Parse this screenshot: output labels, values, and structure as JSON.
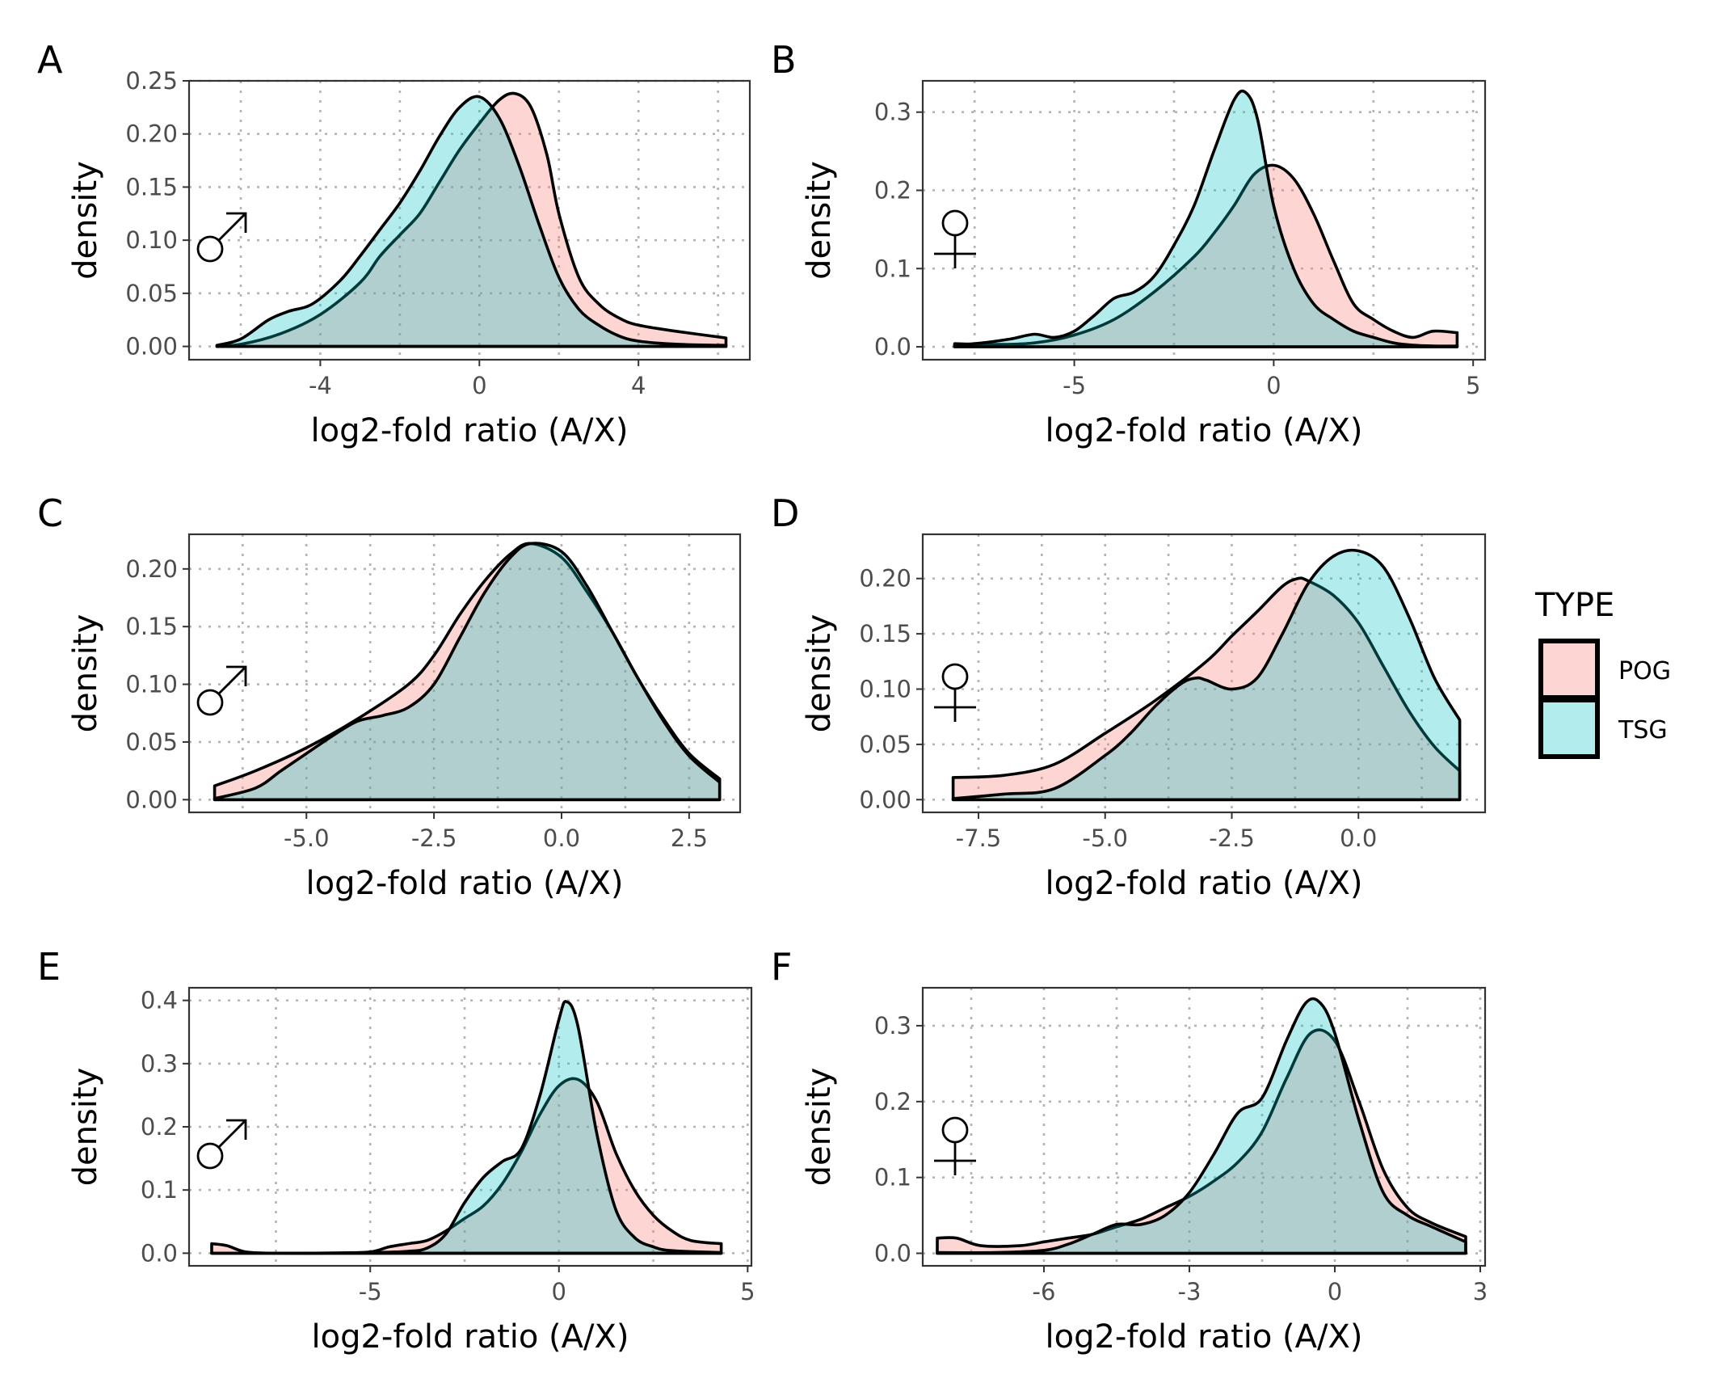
{
  "colors": {
    "POG": "#F8766D",
    "TSG": "#00BFC4"
  },
  "legend": {
    "title": "TYPE",
    "items": [
      {
        "key": "POG",
        "label": "POG"
      },
      {
        "key": "TSG",
        "label": "TSG"
      }
    ]
  },
  "chart_data": [
    {
      "type": "area",
      "panel": "A",
      "sex_symbol": "male-symbol-icon",
      "xlabel": "log2-fold ratio (A/X)",
      "ylabel": "density",
      "xlim": [
        -7.3,
        6.8
      ],
      "ylim": [
        -0.0125,
        0.25
      ],
      "xticks": [
        -4,
        0,
        4
      ],
      "xtick_labels": [
        "-4",
        "0",
        "4"
      ],
      "yticks": [
        0,
        0.05,
        0.1,
        0.15,
        0.2,
        0.25
      ],
      "ytick_labels": [
        "0.00",
        "0.05",
        "0.10",
        "0.15",
        "0.20",
        "0.25"
      ],
      "series": [
        {
          "name": "POG",
          "x": [
            -6.6,
            -6,
            -5,
            -4,
            -3,
            -2.5,
            -2,
            -1.5,
            -1,
            -0.5,
            0,
            0.5,
            0.9,
            1.3,
            1.7,
            2,
            2.5,
            3,
            3.5,
            4,
            5,
            6.2
          ],
          "y": [
            0.001,
            0.002,
            0.012,
            0.03,
            0.06,
            0.085,
            0.105,
            0.125,
            0.155,
            0.185,
            0.21,
            0.232,
            0.238,
            0.225,
            0.18,
            0.125,
            0.065,
            0.04,
            0.027,
            0.02,
            0.014,
            0.008
          ]
        },
        {
          "name": "TSG",
          "x": [
            -6.6,
            -6,
            -5.3,
            -4.8,
            -4.2,
            -3.5,
            -3,
            -2.5,
            -2,
            -1.5,
            -1,
            -0.5,
            0,
            0.5,
            1,
            1.5,
            2,
            2.5,
            3,
            3.5,
            4,
            5,
            6.2
          ],
          "y": [
            0.001,
            0.007,
            0.025,
            0.033,
            0.04,
            0.062,
            0.085,
            0.11,
            0.135,
            0.165,
            0.198,
            0.225,
            0.235,
            0.215,
            0.17,
            0.115,
            0.065,
            0.035,
            0.02,
            0.01,
            0.005,
            0.002,
            0.001
          ]
        }
      ]
    },
    {
      "type": "area",
      "panel": "B",
      "sex_symbol": "female-symbol-icon",
      "xlabel": "log2-fold ratio (A/X)",
      "ylabel": "density",
      "xlim": [
        -8.8,
        5.3
      ],
      "ylim": [
        -0.0165,
        0.34
      ],
      "xticks": [
        -5,
        0,
        5
      ],
      "xtick_labels": [
        "-5",
        "0",
        "5"
      ],
      "yticks": [
        0,
        0.1,
        0.2,
        0.3
      ],
      "ytick_labels": [
        "0.0",
        "0.1",
        "0.2",
        "0.3"
      ],
      "series": [
        {
          "name": "POG",
          "x": [
            -8,
            -7,
            -6,
            -5,
            -4,
            -3,
            -2,
            -1.5,
            -1,
            -0.5,
            0,
            0.5,
            1,
            1.5,
            2,
            2.5,
            3,
            3.5,
            4,
            4.6
          ],
          "y": [
            0.004,
            0.003,
            0.005,
            0.015,
            0.035,
            0.07,
            0.115,
            0.145,
            0.18,
            0.22,
            0.232,
            0.215,
            0.17,
            0.11,
            0.055,
            0.035,
            0.02,
            0.012,
            0.02,
            0.018
          ]
        },
        {
          "name": "TSG",
          "x": [
            -8,
            -7.3,
            -6.6,
            -6,
            -5.5,
            -5,
            -4.5,
            -4,
            -3.5,
            -3,
            -2.5,
            -2,
            -1.5,
            -1,
            -0.7,
            -0.4,
            0,
            0.5,
            1,
            1.5,
            2,
            2.5,
            3,
            3.5,
            4,
            4.6
          ],
          "y": [
            0.002,
            0.005,
            0.01,
            0.016,
            0.012,
            0.02,
            0.04,
            0.062,
            0.07,
            0.09,
            0.13,
            0.18,
            0.25,
            0.315,
            0.325,
            0.29,
            0.18,
            0.1,
            0.055,
            0.035,
            0.02,
            0.012,
            0.005,
            0.002,
            0.001,
            0.001
          ]
        }
      ]
    },
    {
      "type": "area",
      "panel": "C",
      "sex_symbol": "male-symbol-icon",
      "xlabel": "log2-fold ratio (A/X)",
      "ylabel": "density",
      "xlim": [
        -7.3,
        3.5
      ],
      "ylim": [
        -0.011,
        0.23
      ],
      "xticks": [
        -5,
        -2.5,
        0,
        2.5
      ],
      "xtick_labels": [
        "-5.0",
        "-2.5",
        "0.0",
        "2.5"
      ],
      "yticks": [
        0,
        0.05,
        0.1,
        0.15,
        0.2
      ],
      "ytick_labels": [
        "0.00",
        "0.05",
        "0.10",
        "0.15",
        "0.20"
      ],
      "series": [
        {
          "name": "POG",
          "x": [
            -6.8,
            -6,
            -5,
            -4,
            -3,
            -2.5,
            -2,
            -1.5,
            -1,
            -0.6,
            0,
            0.5,
            1,
            1.5,
            2,
            2.5,
            3.1
          ],
          "y": [
            0.012,
            0.025,
            0.045,
            0.07,
            0.1,
            0.125,
            0.16,
            0.19,
            0.213,
            0.222,
            0.21,
            0.18,
            0.145,
            0.105,
            0.07,
            0.04,
            0.018
          ]
        },
        {
          "name": "TSG",
          "x": [
            -6.8,
            -6,
            -5.5,
            -5,
            -4.5,
            -4,
            -3.5,
            -3,
            -2.5,
            -2,
            -1.5,
            -1,
            -0.6,
            0,
            0.5,
            1,
            1.5,
            2,
            2.5,
            3.1
          ],
          "y": [
            0.001,
            0.01,
            0.025,
            0.04,
            0.055,
            0.068,
            0.073,
            0.08,
            0.1,
            0.14,
            0.18,
            0.21,
            0.222,
            0.215,
            0.185,
            0.145,
            0.105,
            0.068,
            0.038,
            0.015
          ]
        }
      ]
    },
    {
      "type": "area",
      "panel": "D",
      "sex_symbol": "female-symbol-icon",
      "xlabel": "log2-fold ratio (A/X)",
      "ylabel": "density",
      "xlim": [
        -8.6,
        2.5
      ],
      "ylim": [
        -0.0115,
        0.24
      ],
      "xticks": [
        -7.5,
        -5,
        -2.5,
        0
      ],
      "xtick_labels": [
        "-7.5",
        "-5.0",
        "-2.5",
        "0.0"
      ],
      "yticks": [
        0,
        0.05,
        0.1,
        0.15,
        0.2
      ],
      "ytick_labels": [
        "0.00",
        "0.05",
        "0.10",
        "0.15",
        "0.20"
      ],
      "series": [
        {
          "name": "POG",
          "x": [
            -8,
            -7,
            -6,
            -5,
            -4,
            -3,
            -2.5,
            -2,
            -1.5,
            -1.2,
            -1,
            -0.5,
            0,
            0.5,
            1,
            1.5,
            2
          ],
          "y": [
            0.02,
            0.022,
            0.032,
            0.06,
            0.09,
            0.125,
            0.148,
            0.17,
            0.193,
            0.2,
            0.198,
            0.185,
            0.16,
            0.12,
            0.08,
            0.048,
            0.026
          ]
        },
        {
          "name": "TSG",
          "x": [
            -8,
            -7,
            -6,
            -5,
            -4.5,
            -4,
            -3.5,
            -3.2,
            -3,
            -2.5,
            -2,
            -1.5,
            -1,
            -0.5,
            0,
            0.5,
            1,
            1.5,
            2
          ],
          "y": [
            0.001,
            0.005,
            0.01,
            0.04,
            0.06,
            0.085,
            0.105,
            0.11,
            0.108,
            0.1,
            0.11,
            0.15,
            0.195,
            0.22,
            0.225,
            0.21,
            0.165,
            0.11,
            0.072
          ]
        }
      ]
    },
    {
      "type": "area",
      "panel": "E",
      "sex_symbol": "male-symbol-icon",
      "xlabel": "log2-fold ratio (A/X)",
      "ylabel": "density",
      "xlim": [
        -9.8,
        5.1
      ],
      "ylim": [
        -0.02,
        0.42
      ],
      "xticks": [
        -5,
        0,
        5
      ],
      "xtick_labels": [
        "-5",
        "0",
        "5"
      ],
      "yticks": [
        0,
        0.1,
        0.2,
        0.3,
        0.4
      ],
      "ytick_labels": [
        "0.0",
        "0.1",
        "0.2",
        "0.3",
        "0.4"
      ],
      "series": [
        {
          "name": "POG",
          "x": [
            -9.2,
            -8.8,
            -8.3,
            -7.5,
            -6,
            -5,
            -4.5,
            -4,
            -3.5,
            -3,
            -2.5,
            -2,
            -1.5,
            -1,
            -0.5,
            0,
            0.5,
            1,
            1.5,
            2,
            2.5,
            3,
            3.5,
            4.3
          ],
          "y": [
            0.015,
            0.012,
            0.002,
            0.0,
            0.0,
            0.002,
            0.01,
            0.015,
            0.02,
            0.035,
            0.055,
            0.075,
            0.11,
            0.16,
            0.22,
            0.265,
            0.275,
            0.24,
            0.16,
            0.1,
            0.06,
            0.035,
            0.02,
            0.015
          ]
        },
        {
          "name": "TSG",
          "x": [
            -9.2,
            -7,
            -5,
            -4,
            -3.5,
            -3,
            -2.5,
            -2,
            -1.5,
            -1,
            -0.5,
            0,
            0.2,
            0.5,
            1,
            1.5,
            2,
            2.5,
            3,
            4.3
          ],
          "y": [
            0.0,
            0.0,
            0.001,
            0.003,
            0.008,
            0.03,
            0.08,
            0.12,
            0.145,
            0.165,
            0.25,
            0.37,
            0.398,
            0.36,
            0.19,
            0.07,
            0.025,
            0.01,
            0.004,
            0.001
          ]
        }
      ]
    },
    {
      "type": "area",
      "panel": "F",
      "sex_symbol": "female-symbol-icon",
      "xlabel": "log2-fold ratio (A/X)",
      "ylabel": "density",
      "xlim": [
        -8.5,
        3.1
      ],
      "ylim": [
        -0.0165,
        0.35
      ],
      "xticks": [
        -6,
        -3,
        0,
        3
      ],
      "xtick_labels": [
        "-6",
        "-3",
        "0",
        "3"
      ],
      "yticks": [
        0,
        0.1,
        0.2,
        0.3
      ],
      "ytick_labels": [
        "0.0",
        "0.1",
        "0.2",
        "0.3"
      ],
      "series": [
        {
          "name": "POG",
          "x": [
            -8.2,
            -7.8,
            -7.3,
            -6.5,
            -6,
            -5.5,
            -5,
            -4.5,
            -4,
            -3.5,
            -3,
            -2.5,
            -2,
            -1.5,
            -1,
            -0.5,
            0,
            0.5,
            1,
            1.5,
            2,
            2.7
          ],
          "y": [
            0.02,
            0.02,
            0.01,
            0.01,
            0.015,
            0.02,
            0.025,
            0.035,
            0.045,
            0.06,
            0.075,
            0.095,
            0.12,
            0.16,
            0.23,
            0.29,
            0.28,
            0.2,
            0.11,
            0.06,
            0.04,
            0.022
          ]
        },
        {
          "name": "TSG",
          "x": [
            -8.2,
            -7,
            -6,
            -5.5,
            -5,
            -4.5,
            -4,
            -3.5,
            -3,
            -2.5,
            -2,
            -1.5,
            -1,
            -0.6,
            -0.3,
            0,
            0.5,
            1,
            1.5,
            2,
            2.7
          ],
          "y": [
            0.001,
            0.001,
            0.004,
            0.012,
            0.025,
            0.038,
            0.038,
            0.05,
            0.08,
            0.13,
            0.185,
            0.205,
            0.28,
            0.33,
            0.33,
            0.29,
            0.175,
            0.08,
            0.05,
            0.035,
            0.015
          ]
        }
      ]
    }
  ]
}
